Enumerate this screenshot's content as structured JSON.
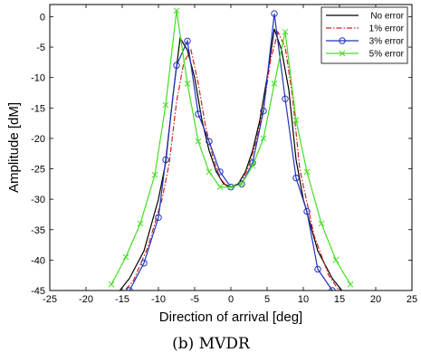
{
  "caption": "(b) MVDR",
  "chart_data": {
    "type": "line",
    "title": "",
    "xlabel": "Direction of arrival [deg]",
    "ylabel": "Amplitude [dM]",
    "xlim": [
      -25,
      25
    ],
    "ylim": [
      -45,
      2
    ],
    "xticks": [
      -25,
      -20,
      -15,
      -10,
      -5,
      0,
      5,
      10,
      15,
      20,
      25
    ],
    "yticks": [
      0,
      -5,
      -10,
      -15,
      -20,
      -25,
      -30,
      -35,
      -40,
      -45
    ],
    "grid": false,
    "legend_position": "top-right",
    "series": [
      {
        "name": "No error",
        "color": "#000000",
        "dash": "solid",
        "marker": "none",
        "x": [
          -16,
          -14,
          -12,
          -10,
          -9,
          -8,
          -7,
          -6,
          -5,
          -4,
          -3,
          -2,
          -1,
          0,
          1,
          2,
          3,
          4,
          5,
          6,
          7,
          8,
          9,
          10,
          12,
          14,
          16
        ],
        "y": [
          -46,
          -43,
          -38.5,
          -30,
          -24,
          -13,
          -3.5,
          -5.5,
          -10,
          -17,
          -22,
          -25.5,
          -27.5,
          -28,
          -27.5,
          -25.5,
          -22,
          -17,
          -10,
          -2,
          -5.5,
          -12,
          -23.5,
          -30,
          -38.5,
          -43,
          -46
        ]
      },
      {
        "name": "1% error",
        "color": "#cc2222",
        "dash": "dashdot",
        "marker": "none",
        "x": [
          -15.5,
          -13.5,
          -11.5,
          -9.5,
          -8.5,
          -7.5,
          -6.5,
          -5.5,
          -4.5,
          -3.5,
          -2.5,
          -1.5,
          -0.5,
          0.5,
          1.5,
          2.5,
          3.5,
          4.5,
          5.5,
          6.5,
          7.5,
          8.5,
          9.5,
          11.5,
          13.5,
          15.5
        ],
        "y": [
          -46,
          -43.5,
          -38,
          -30,
          -24,
          -14,
          -7.5,
          -5.5,
          -11,
          -18,
          -23,
          -26.5,
          -28,
          -28,
          -27,
          -24.5,
          -20.5,
          -15,
          -7,
          -2.5,
          -5,
          -13,
          -25,
          -36,
          -42.5,
          -46
        ]
      },
      {
        "name": "3% error",
        "color": "#2233bb",
        "dash": "solid",
        "marker": "circle",
        "x": [
          -14,
          -12,
          -10,
          -9,
          -7.5,
          -6,
          -4.5,
          -3,
          -1.5,
          0,
          1.5,
          3,
          4.5,
          6,
          7.5,
          9,
          10.5,
          12,
          14
        ],
        "y": [
          -45,
          -40.5,
          -33,
          -23.5,
          -8,
          -4,
          -16,
          -20.5,
          -25.5,
          -28,
          -27.5,
          -24,
          -15.5,
          0.5,
          -13.5,
          -26.5,
          -32,
          -41.5,
          -45
        ]
      },
      {
        "name": "5% error",
        "color": "#44dd22",
        "dash": "solid",
        "marker": "x",
        "x": [
          -16.5,
          -14.5,
          -12.5,
          -10.5,
          -9,
          -7.5,
          -6,
          -4.5,
          -3,
          -1.5,
          0,
          1.5,
          3,
          4.5,
          6,
          7.5,
          9,
          10.5,
          12.5,
          14.5,
          16.5
        ],
        "y": [
          -44,
          -39.5,
          -34,
          -26,
          -14.5,
          1,
          -11,
          -20.5,
          -25.5,
          -28,
          -28,
          -27.5,
          -24.5,
          -20,
          -11,
          -2.5,
          -17,
          -25.5,
          -34,
          -40,
          -44
        ]
      }
    ]
  }
}
